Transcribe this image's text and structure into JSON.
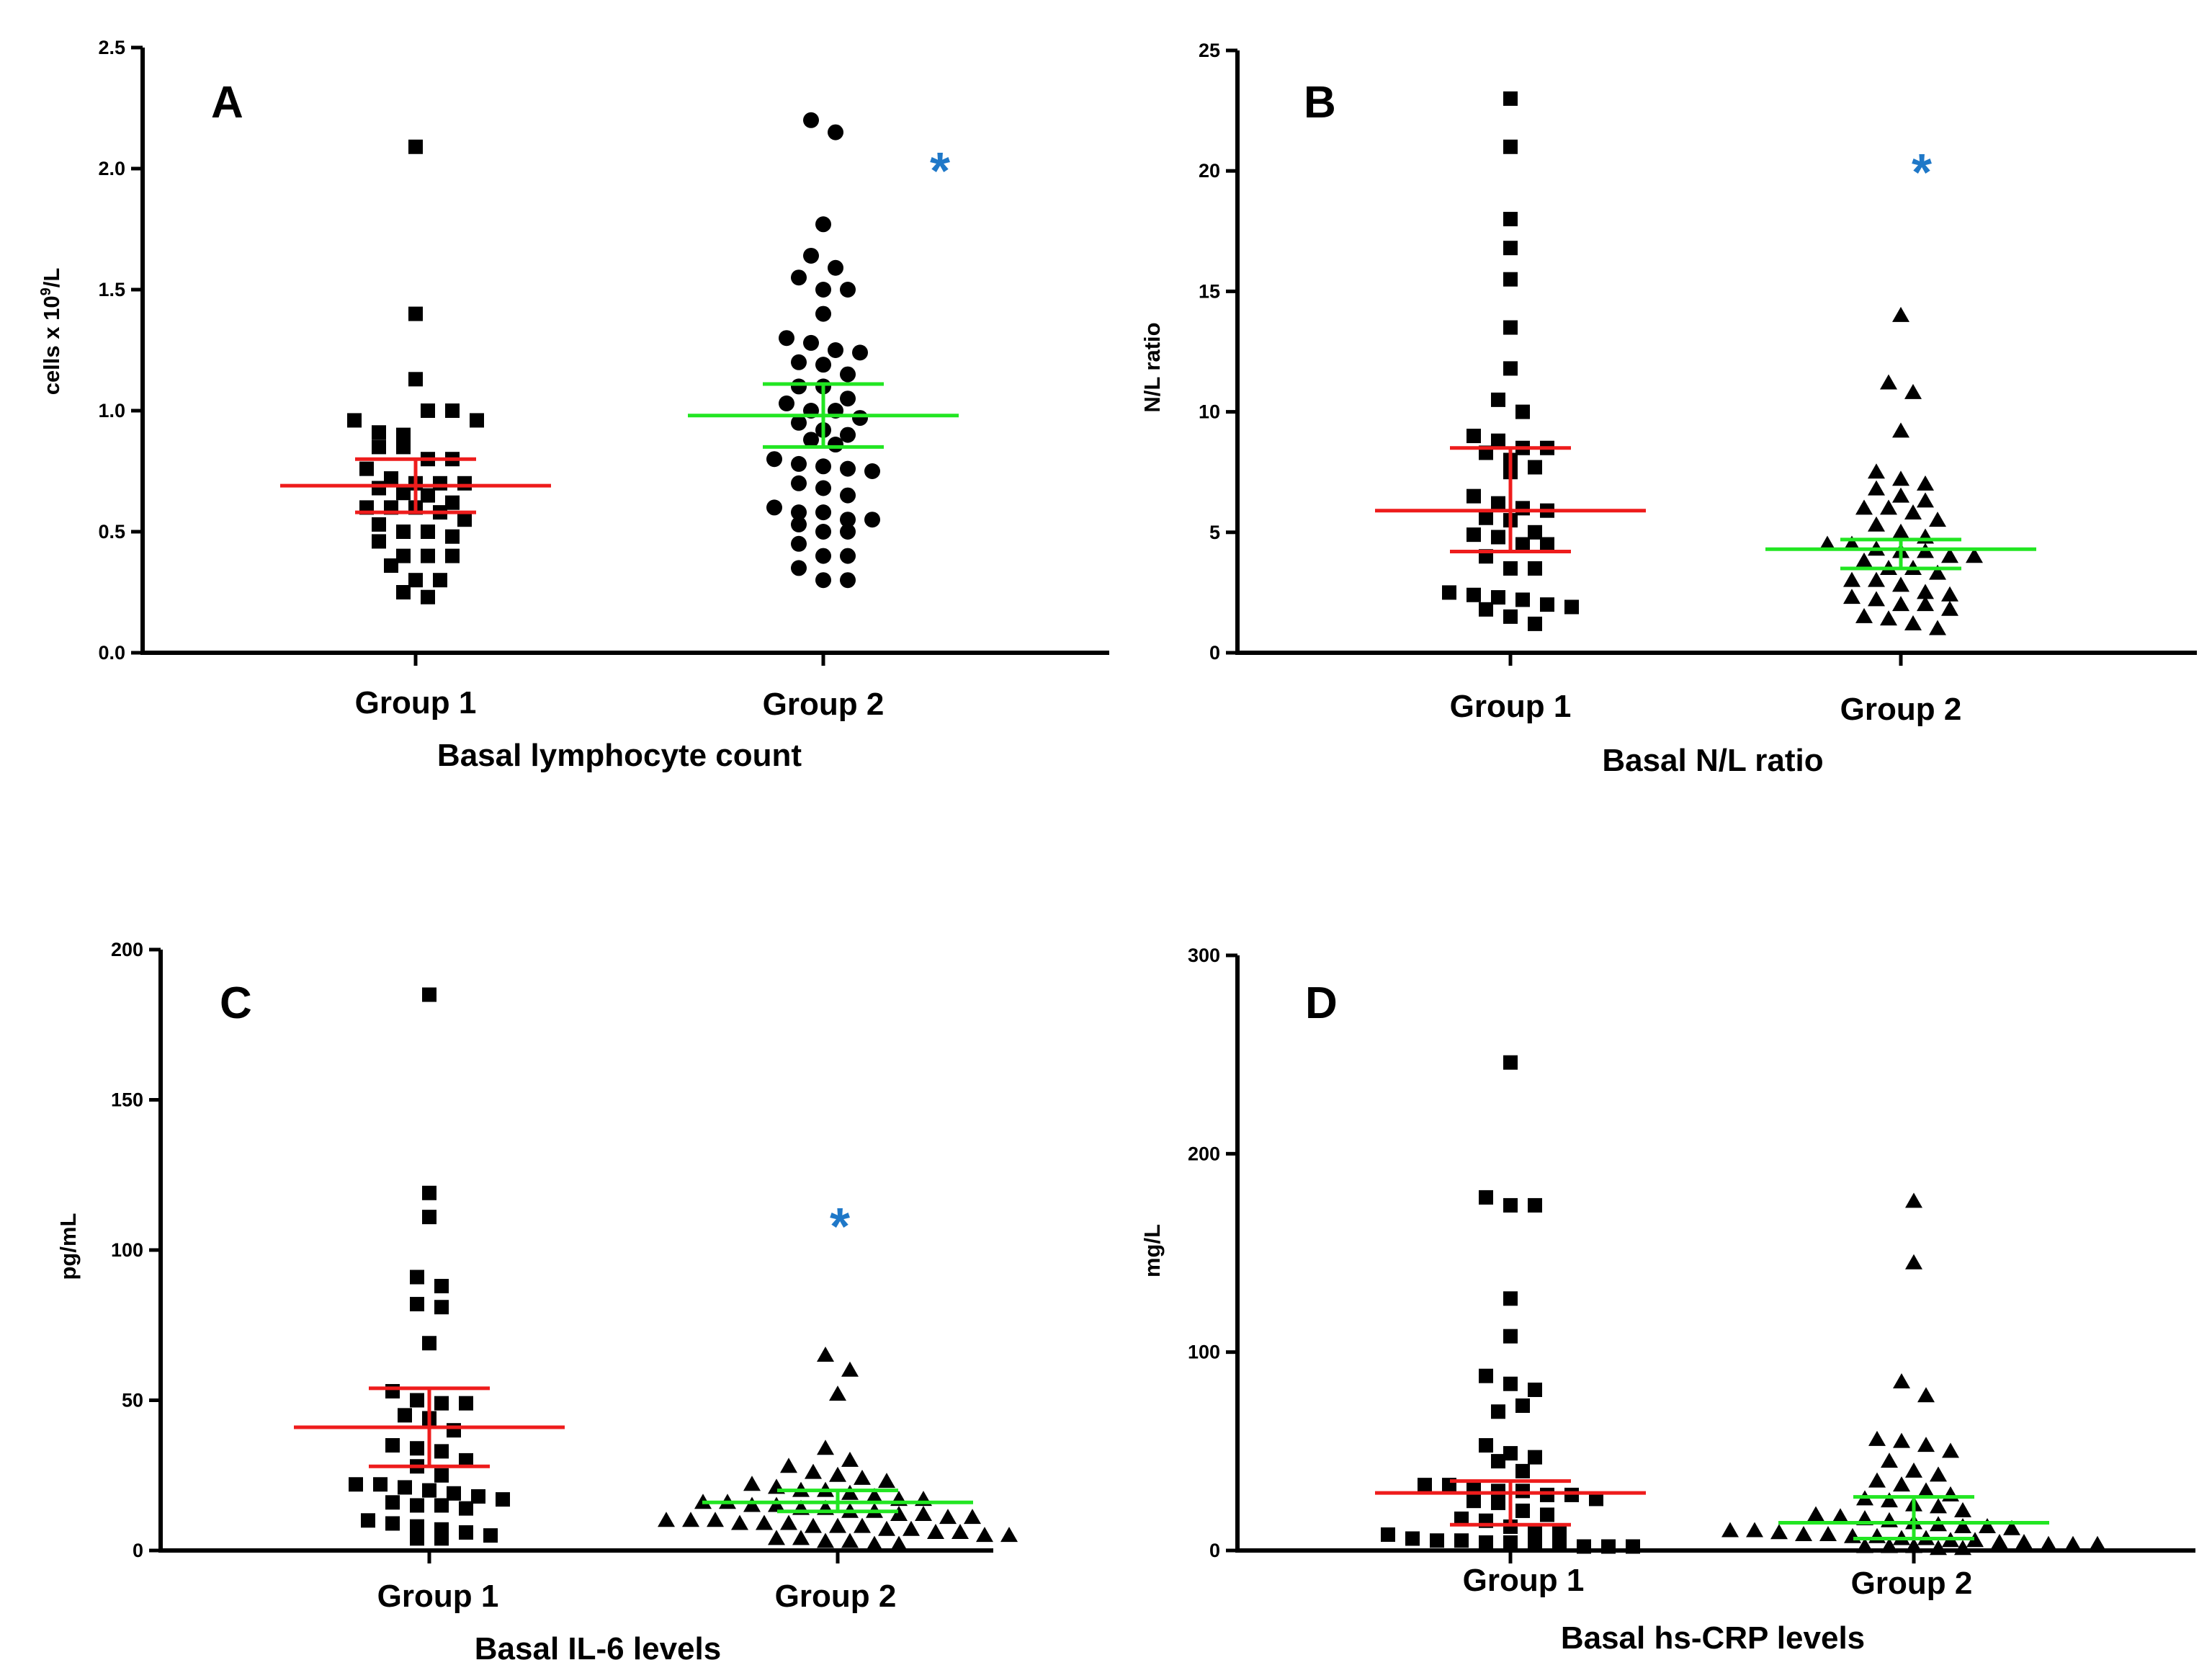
{
  "colors": {
    "axis": "#000000",
    "group1_bar": "#ee1c1c",
    "group2_bar": "#22e622",
    "significance": "#1f78c8",
    "marker": "#000000"
  },
  "chart_data": [
    {
      "panel": "A",
      "type": "scatter",
      "title": "Basal lymphocyte count",
      "ylabel": "cells x 10",
      "ylabel_sup": "9",
      "ylabel_tail": "/L",
      "ylim": [
        0,
        2.5
      ],
      "yticks": [
        0.0,
        0.5,
        1.0,
        1.5,
        2.0,
        2.5
      ],
      "tick_format": "fixed1",
      "categories": [
        "Group 1",
        "Group 2"
      ],
      "significance": {
        "label": "*",
        "y": 2.0
      },
      "groups": [
        {
          "name": "Group 1",
          "marker": "square",
          "mean": 0.69,
          "ci": [
            0.58,
            0.8
          ],
          "values": [
            2.09,
            1.4,
            1.13,
            0.96,
            0.91,
            0.9,
            1.0,
            1.0,
            0.96,
            0.85,
            0.85,
            0.8,
            0.8,
            0.76,
            0.72,
            0.7,
            0.7,
            0.7,
            0.68,
            0.66,
            0.65,
            0.62,
            0.6,
            0.6,
            0.6,
            0.58,
            0.55,
            0.53,
            0.5,
            0.5,
            0.48,
            0.46,
            0.4,
            0.4,
            0.4,
            0.36,
            0.3,
            0.3,
            0.25,
            0.23
          ]
        },
        {
          "name": "Group 2",
          "marker": "circle",
          "mean": 0.98,
          "ci": [
            0.85,
            1.11
          ],
          "values": [
            2.2,
            2.15,
            1.77,
            1.64,
            1.59,
            1.55,
            1.5,
            1.5,
            1.4,
            1.3,
            1.28,
            1.25,
            1.24,
            1.2,
            1.19,
            1.15,
            1.1,
            1.1,
            1.05,
            1.03,
            1.0,
            1.0,
            0.97,
            0.95,
            0.92,
            0.9,
            0.88,
            0.86,
            0.8,
            0.78,
            0.77,
            0.76,
            0.75,
            0.7,
            0.68,
            0.65,
            0.6,
            0.58,
            0.58,
            0.55,
            0.55,
            0.53,
            0.5,
            0.5,
            0.45,
            0.4,
            0.4,
            0.35,
            0.3,
            0.3
          ]
        }
      ]
    },
    {
      "panel": "B",
      "type": "scatter",
      "title": "Basal N/L ratio",
      "ylabel": "N/L ratio",
      "ylim": [
        0,
        25
      ],
      "yticks": [
        0,
        5,
        10,
        15,
        20,
        25
      ],
      "tick_format": "int",
      "categories": [
        "Group 1",
        "Group 2"
      ],
      "significance": {
        "label": "*",
        "y": 20
      },
      "groups": [
        {
          "name": "Group 1",
          "marker": "square",
          "mean": 5.9,
          "ci": [
            4.2,
            8.5
          ],
          "values": [
            23.0,
            21.0,
            18.0,
            16.8,
            15.5,
            13.5,
            11.8,
            10.5,
            10.0,
            9.0,
            8.8,
            8.5,
            8.5,
            8.3,
            8.0,
            7.7,
            7.5,
            6.5,
            6.2,
            6.0,
            5.9,
            5.6,
            5.5,
            5.0,
            4.9,
            4.8,
            4.5,
            4.5,
            4.0,
            3.5,
            3.5,
            2.5,
            2.4,
            2.3,
            2.2,
            2.0,
            1.9,
            1.8,
            1.5,
            1.2
          ]
        },
        {
          "name": "Group 2",
          "marker": "triangle",
          "mean": 4.3,
          "ci": [
            3.5,
            4.7
          ],
          "values": [
            14.0,
            11.2,
            10.8,
            9.2,
            7.5,
            7.2,
            7.0,
            6.8,
            6.5,
            6.3,
            6.0,
            6.0,
            5.8,
            5.5,
            5.3,
            5.0,
            4.8,
            4.5,
            4.5,
            4.3,
            4.2,
            4.2,
            4.0,
            4.0,
            3.8,
            3.5,
            3.5,
            3.3,
            3.0,
            3.0,
            2.8,
            2.5,
            2.4,
            2.3,
            2.2,
            2.0,
            2.0,
            1.8,
            1.5,
            1.4,
            1.2,
            1.0
          ]
        }
      ]
    },
    {
      "panel": "C",
      "type": "scatter",
      "title": "Basal IL-6 levels",
      "ylabel": "pg/mL",
      "ylim": [
        0,
        200
      ],
      "yticks": [
        0,
        50,
        100,
        150,
        200
      ],
      "tick_format": "int",
      "categories": [
        "Group 1",
        "Group 2"
      ],
      "significance": {
        "label": "*",
        "y": 106
      },
      "groups": [
        {
          "name": "Group 1",
          "marker": "square",
          "mean": 41,
          "ci": [
            28,
            54
          ],
          "values": [
            185,
            119,
            111,
            91,
            88,
            82,
            81,
            69,
            53,
            50,
            49,
            49,
            45,
            44,
            40,
            35,
            34,
            33,
            30,
            28,
            25,
            22,
            22,
            21,
            20,
            19,
            18,
            17,
            16,
            15,
            15,
            14,
            10,
            9,
            8,
            7,
            6,
            5,
            4,
            4
          ]
        },
        {
          "name": "Group 2",
          "marker": "triangle",
          "mean": 16,
          "ci": [
            13,
            20
          ],
          "values": [
            65,
            60,
            52,
            34,
            30,
            28,
            26,
            25,
            24,
            23,
            22,
            21,
            20,
            20,
            19,
            18,
            17,
            17,
            16,
            16,
            15,
            15,
            14,
            14,
            13,
            13,
            12,
            12,
            11,
            11,
            10,
            10,
            10,
            9,
            9,
            9,
            8,
            8,
            8,
            7,
            7,
            6,
            6,
            5,
            5,
            4,
            4,
            3,
            3,
            2,
            2
          ]
        }
      ]
    },
    {
      "panel": "D",
      "type": "scatter",
      "title": "Basal hs-CRP levels",
      "ylabel": "mg/L",
      "ylim": [
        0,
        300
      ],
      "yticks": [
        0,
        100,
        200,
        300
      ],
      "tick_format": "int",
      "categories": [
        "Group 1",
        "Group 2"
      ],
      "groups": [
        {
          "name": "Group 1",
          "marker": "square",
          "mean": 29,
          "ci": [
            13,
            35
          ],
          "values": [
            246,
            178,
            174,
            174,
            127,
            108,
            88,
            84,
            81,
            70,
            73,
            53,
            49,
            47,
            45,
            40,
            33,
            33,
            32,
            30,
            30,
            28,
            28,
            26,
            25,
            24,
            20,
            18,
            16,
            15,
            12,
            10,
            9,
            8,
            6,
            5,
            5,
            4,
            4,
            3,
            3,
            2,
            2,
            2
          ]
        },
        {
          "name": "Group 2",
          "marker": "triangle",
          "mean": 14,
          "ci": [
            6,
            27
          ],
          "values": [
            176,
            145,
            85,
            78,
            56,
            55,
            53,
            50,
            45,
            40,
            38,
            35,
            33,
            30,
            28,
            26,
            25,
            23,
            22,
            20,
            18,
            17,
            16,
            15,
            14,
            13,
            12,
            12,
            11,
            10,
            10,
            9,
            8,
            8,
            7,
            7,
            6,
            6,
            5,
            5,
            4,
            4,
            3,
            3,
            3,
            2,
            2,
            2,
            1,
            1
          ]
        }
      ]
    }
  ]
}
